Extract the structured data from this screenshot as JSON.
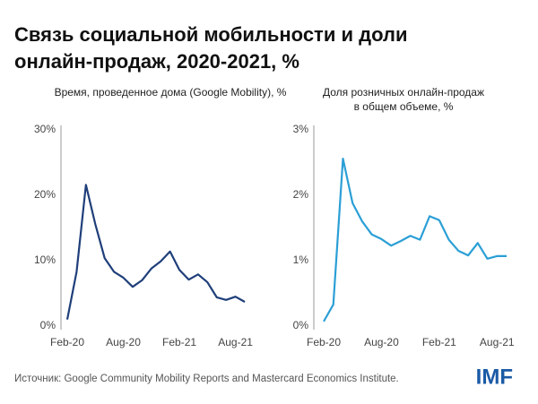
{
  "title": [
    "Связь социальной мобильности и доли",
    "онлайн-продаж, 2020-2021, %"
  ],
  "chart_data": [
    {
      "type": "line",
      "title": [
        "Время, проведенное дома (Google Mobility), %"
      ],
      "categories": [
        "Feb-20",
        null,
        null,
        null,
        null,
        null,
        "Aug-20",
        null,
        null,
        null,
        null,
        null,
        "Feb-21",
        null,
        null,
        null,
        null,
        null,
        "Aug-21",
        null
      ],
      "series": [
        {
          "color": "#1f3f7a",
          "values": [
            1.0,
            8.3,
            21.6,
            15.6,
            10.4,
            8.3,
            7.4,
            6.0,
            7.0,
            8.8,
            9.9,
            11.4,
            8.6,
            7.1,
            7.9,
            6.7,
            4.4,
            4.0,
            4.5,
            3.7
          ]
        }
      ],
      "ylim": [
        0,
        30
      ],
      "yticks": [
        {
          "value": 0,
          "label": "0%"
        },
        {
          "value": 10,
          "label": "10%"
        },
        {
          "value": 20,
          "label": "20%"
        },
        {
          "value": 30,
          "label": "30%"
        }
      ],
      "grid": false
    },
    {
      "type": "line",
      "title": [
        "Доля розничных онлайн-продаж",
        "в общем объеме, %"
      ],
      "categories": [
        "Feb-20",
        null,
        null,
        null,
        null,
        null,
        "Aug-20",
        null,
        null,
        null,
        null,
        null,
        "Feb-21",
        null,
        null,
        null,
        null,
        null,
        "Aug-21",
        null
      ],
      "series": [
        {
          "color": "#2b9fd6",
          "values": [
            0.07,
            0.33,
            2.56,
            1.88,
            1.6,
            1.4,
            1.33,
            1.23,
            1.3,
            1.38,
            1.32,
            1.68,
            1.62,
            1.32,
            1.15,
            1.08,
            1.27,
            1.03,
            1.07,
            1.07
          ]
        }
      ],
      "ylim": [
        0,
        3
      ],
      "yticks": [
        {
          "value": 0,
          "label": "0%"
        },
        {
          "value": 1,
          "label": "1%"
        },
        {
          "value": 2,
          "label": "2%"
        },
        {
          "value": 3,
          "label": "3%"
        }
      ],
      "grid": false
    }
  ],
  "source": "Источник: Google Community Mobility Reports and Mastercard Economics Institute.",
  "logo": "IMF"
}
